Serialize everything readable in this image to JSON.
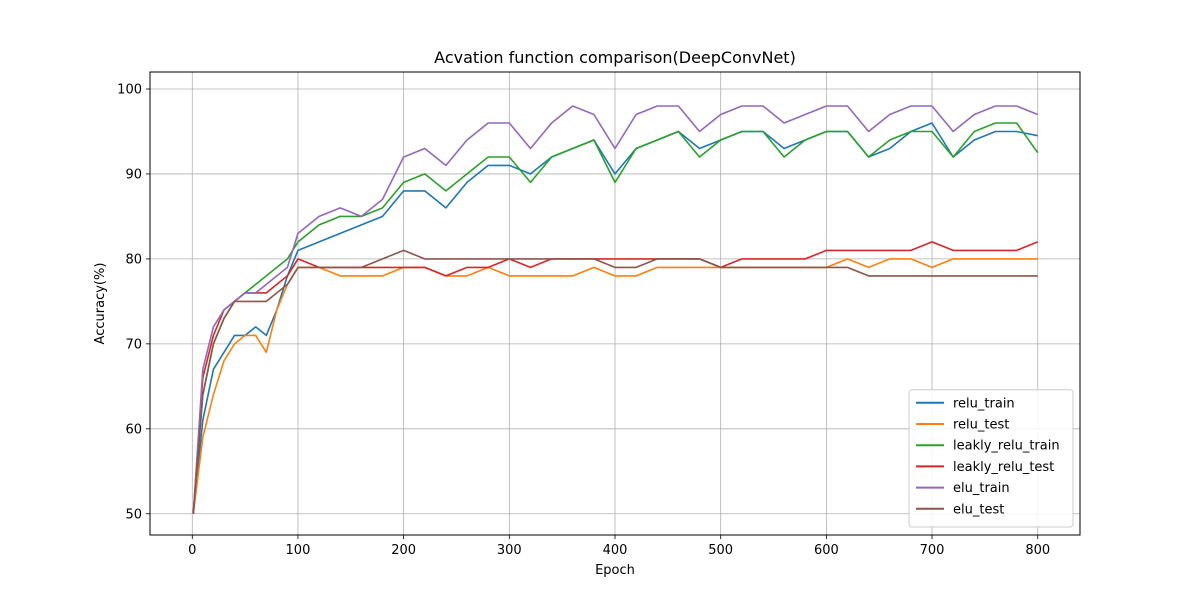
{
  "chart_data": {
    "type": "line",
    "title": "Acvation function comparison(DeepConvNet)",
    "xlabel": "Epoch",
    "ylabel": "Accuracy(%)",
    "xlim": [
      -40,
      840
    ],
    "ylim": [
      47.5,
      102
    ],
    "xticks": [
      0,
      100,
      200,
      300,
      400,
      500,
      600,
      700,
      800
    ],
    "yticks": [
      50,
      60,
      70,
      80,
      90,
      100
    ],
    "grid": true,
    "legend_position": "lower right",
    "x": [
      1,
      10,
      20,
      30,
      40,
      50,
      60,
      70,
      80,
      90,
      100,
      120,
      140,
      160,
      180,
      200,
      220,
      240,
      260,
      280,
      300,
      320,
      340,
      360,
      380,
      400,
      420,
      440,
      460,
      480,
      500,
      520,
      540,
      560,
      580,
      600,
      620,
      640,
      660,
      680,
      700,
      720,
      740,
      760,
      780,
      800
    ],
    "series": [
      {
        "name": "relu_train",
        "color": "#1f77b4",
        "values": [
          50,
          61,
          67,
          69,
          71,
          71,
          72,
          71,
          74,
          78,
          81,
          82,
          83,
          84,
          85,
          88,
          88,
          86,
          89,
          91,
          91,
          90,
          92,
          93,
          94,
          90,
          93,
          94,
          95,
          93,
          94,
          95,
          95,
          93,
          94,
          95,
          95,
          92,
          93,
          95,
          96,
          92,
          94,
          95,
          95,
          94.5
        ]
      },
      {
        "name": "relu_test",
        "color": "#ff7f0e",
        "values": [
          50,
          59,
          64,
          68,
          70,
          71,
          71,
          69,
          74,
          77,
          79,
          79,
          78,
          78,
          78,
          79,
          79,
          78,
          78,
          79,
          78,
          78,
          78,
          78,
          79,
          78,
          78,
          79,
          79,
          79,
          79,
          79,
          79,
          79,
          79,
          79,
          80,
          79,
          80,
          80,
          79,
          80,
          80,
          80,
          80,
          80
        ]
      },
      {
        "name": "leakly_relu_train",
        "color": "#2ca02c",
        "values": [
          50,
          64,
          70,
          73,
          75,
          76,
          77,
          78,
          79,
          80,
          82,
          84,
          85,
          85,
          86,
          89,
          90,
          88,
          90,
          92,
          92,
          89,
          92,
          93,
          94,
          89,
          93,
          94,
          95,
          92,
          94,
          95,
          95,
          92,
          94,
          95,
          95,
          92,
          94,
          95,
          95,
          92,
          95,
          96,
          96,
          92.5
        ]
      },
      {
        "name": "leakly_relu_test",
        "color": "#d62728",
        "values": [
          50,
          66,
          71,
          74,
          75,
          76,
          76,
          76,
          77,
          78,
          80,
          79,
          79,
          79,
          79,
          79,
          79,
          78,
          79,
          79,
          80,
          79,
          80,
          80,
          80,
          80,
          80,
          80,
          80,
          80,
          79,
          80,
          80,
          80,
          80,
          81,
          81,
          81,
          81,
          81,
          82,
          81,
          81,
          81,
          81,
          82
        ]
      },
      {
        "name": "elu_train",
        "color": "#9467bd",
        "values": [
          50,
          67,
          72,
          74,
          75,
          76,
          76,
          77,
          78,
          79,
          83,
          85,
          86,
          85,
          87,
          92,
          93,
          91,
          94,
          96,
          96,
          93,
          96,
          98,
          97,
          93,
          97,
          98,
          98,
          95,
          97,
          98,
          98,
          96,
          97,
          98,
          98,
          95,
          97,
          98,
          98,
          95,
          97,
          98,
          98,
          97
        ]
      },
      {
        "name": "elu_test",
        "color": "#8c564b",
        "values": [
          50,
          64,
          70,
          73,
          75,
          75,
          75,
          75,
          76,
          77,
          79,
          79,
          79,
          79,
          80,
          81,
          80,
          80,
          80,
          80,
          80,
          80,
          80,
          80,
          80,
          79,
          79,
          80,
          80,
          80,
          79,
          79,
          79,
          79,
          79,
          79,
          79,
          78,
          78,
          78,
          78,
          78,
          78,
          78,
          78,
          78
        ]
      }
    ]
  }
}
